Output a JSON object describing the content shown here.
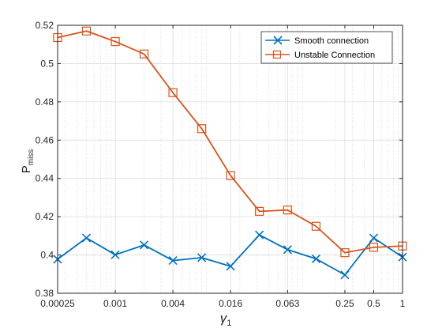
{
  "chart_data": {
    "type": "line",
    "xscale": "log2",
    "x": [
      0.00025,
      0.0005,
      0.001,
      0.002,
      0.004,
      0.008,
      0.016,
      0.032,
      0.063,
      0.125,
      0.25,
      0.5,
      1
    ],
    "xticks": [
      0.00025,
      0.001,
      0.004,
      0.016,
      0.063,
      0.25,
      0.5,
      1
    ],
    "xtick_labels": [
      "0.00025",
      "0.001",
      "0.004",
      "0.016",
      "0.063",
      "0.25",
      "0.5",
      "1"
    ],
    "xlim": [
      0.00025,
      1
    ],
    "ylim": [
      0.38,
      0.52
    ],
    "yticks": [
      0.38,
      0.4,
      0.42,
      0.44,
      0.46,
      0.48,
      0.5,
      0.52
    ],
    "ytick_labels": [
      "0.38",
      "0.4",
      "0.42",
      "0.44",
      "0.46",
      "0.48",
      "0.5",
      "0.52"
    ],
    "xlabel_symbol": "γ",
    "xlabel_subscript": "1",
    "ylabel_main": "P",
    "ylabel_subscript": "miss",
    "grid": true,
    "legend_position": "top-right",
    "series": [
      {
        "name": "Smooth connection",
        "color": "#0072BD",
        "marker": "x",
        "values": [
          0.3978,
          0.4089,
          0.4001,
          0.4052,
          0.3971,
          0.3986,
          0.3941,
          0.4105,
          0.4028,
          0.398,
          0.3896,
          0.4089,
          0.3989
        ]
      },
      {
        "name": "Unstable Connection",
        "color": "#D95319",
        "marker": "square",
        "values": [
          0.5136,
          0.517,
          0.5115,
          0.505,
          0.4848,
          0.466,
          0.4415,
          0.4228,
          0.4235,
          0.415,
          0.4012,
          0.404,
          0.4047
        ]
      }
    ]
  }
}
